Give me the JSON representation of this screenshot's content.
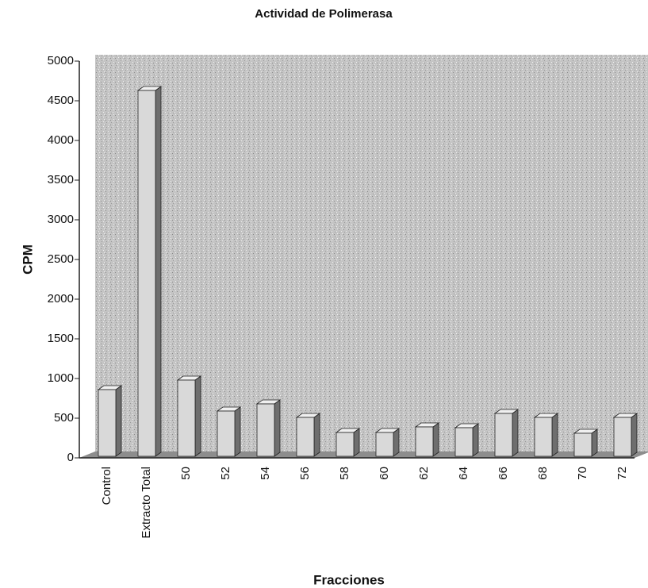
{
  "chart_data": {
    "type": "bar",
    "title": "Actividad de Polimerasa",
    "x_label": "Fracciones",
    "y_label": "CPM",
    "categories": [
      "Control",
      "Extracto Total",
      "50",
      "52",
      "54",
      "56",
      "58",
      "60",
      "62",
      "64",
      "66",
      "68",
      "70",
      "72"
    ],
    "values": [
      860,
      4630,
      980,
      590,
      680,
      510,
      320,
      320,
      390,
      380,
      560,
      510,
      310,
      510
    ],
    "color": "#d9d9d9",
    "ylim": [
      0,
      5000
    ],
    "yticks": [
      0,
      500,
      1000,
      1500,
      2000,
      2500,
      3000,
      3500,
      4000,
      4500,
      5000
    ],
    "grid": false
  }
}
